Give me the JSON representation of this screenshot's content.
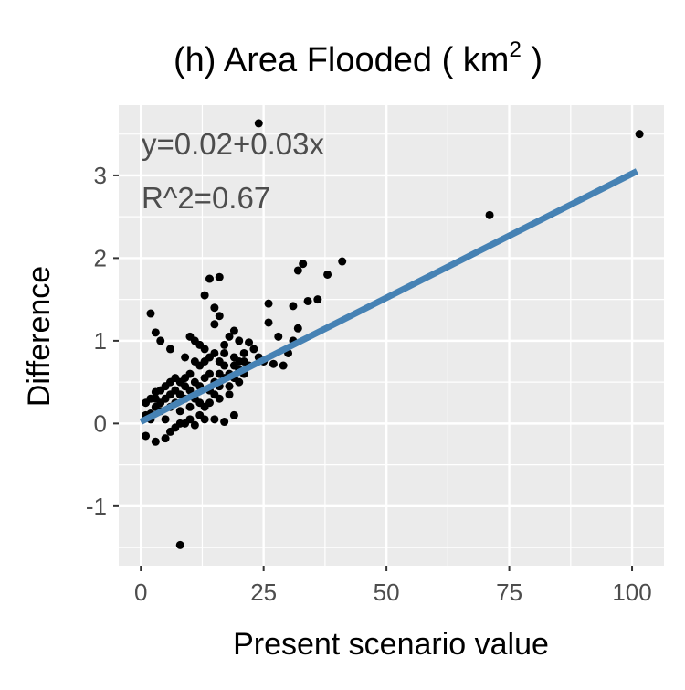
{
  "chart_data": {
    "type": "scatter",
    "title": "(h) Area Flooded ( km",
    "title_superscript": "2",
    "title_suffix": " )",
    "xlabel": "Present scenario value",
    "ylabel": "Difference",
    "xlim": [
      -4.5,
      106.5
    ],
    "ylim": [
      -1.72,
      3.85
    ],
    "x_ticks": [
      0,
      25,
      50,
      75,
      100
    ],
    "x_tick_labels": [
      "0",
      "25",
      "50",
      "75",
      "100"
    ],
    "y_ticks": [
      -1,
      0,
      1,
      2,
      3
    ],
    "y_tick_labels": [
      "-1",
      "0",
      "1",
      "2",
      "3"
    ],
    "grid": true,
    "panel_background": "#ebebeb",
    "grid_color": "#ffffff",
    "point_color": "#000000",
    "annotations": [
      "y=0.02+0.03x",
      "R^2=0.67"
    ],
    "fit_line": {
      "intercept": 0.02,
      "slope": 0.03,
      "x_range": [
        0,
        101
      ],
      "color": "#4682b4"
    },
    "series": [
      {
        "points": [
          [
            101.5,
            3.5
          ],
          [
            71,
            2.52
          ],
          [
            24,
            3.63
          ],
          [
            41,
            1.96
          ],
          [
            38,
            1.8
          ],
          [
            33,
            1.93
          ],
          [
            32,
            1.85
          ],
          [
            36,
            1.5
          ],
          [
            34,
            1.48
          ],
          [
            31,
            1.42
          ],
          [
            26,
            1.45
          ],
          [
            26,
            1.22
          ],
          [
            28,
            1.05
          ],
          [
            30,
            0.85
          ],
          [
            29,
            0.7
          ],
          [
            27,
            0.72
          ],
          [
            32,
            1.15
          ],
          [
            31,
            1.0
          ],
          [
            14,
            1.75
          ],
          [
            16,
            1.77
          ],
          [
            13,
            1.55
          ],
          [
            15,
            1.4
          ],
          [
            16,
            1.3
          ],
          [
            15,
            1.2
          ],
          [
            11,
            1.0
          ],
          [
            10,
            1.05
          ],
          [
            12,
            0.95
          ],
          [
            19,
            1.12
          ],
          [
            18,
            1.05
          ],
          [
            17,
            0.95
          ],
          [
            2,
            1.33
          ],
          [
            3,
            1.1
          ],
          [
            4,
            1.0
          ],
          [
            6,
            0.9
          ],
          [
            9,
            0.8
          ],
          [
            20,
            1.0
          ],
          [
            22,
            0.98
          ],
          [
            21,
            0.85
          ],
          [
            23,
            0.9
          ],
          [
            24,
            0.8
          ],
          [
            25,
            0.75
          ],
          [
            20,
            0.75
          ],
          [
            8,
            -1.47
          ],
          [
            1,
            -0.15
          ],
          [
            3,
            -0.22
          ],
          [
            5,
            -0.18
          ],
          [
            6,
            -0.1
          ],
          [
            7,
            -0.05
          ],
          [
            9,
            0.0
          ],
          [
            11,
            -0.02
          ],
          [
            13,
            0.05
          ],
          [
            15,
            0.05
          ],
          [
            17,
            0.02
          ],
          [
            19,
            0.1
          ],
          [
            13,
            0.2
          ],
          [
            2,
            0.05
          ],
          [
            2,
            0.12
          ],
          [
            3,
            0.2
          ],
          [
            3,
            0.3
          ],
          [
            4,
            0.25
          ],
          [
            4,
            0.15
          ],
          [
            5,
            0.3
          ],
          [
            5,
            0.05
          ],
          [
            6,
            0.35
          ],
          [
            6,
            0.2
          ],
          [
            7,
            0.25
          ],
          [
            7,
            0.4
          ],
          [
            8,
            0.35
          ],
          [
            8,
            0.15
          ],
          [
            9,
            0.3
          ],
          [
            9,
            0.45
          ],
          [
            10,
            0.4
          ],
          [
            10,
            0.2
          ],
          [
            11,
            0.5
          ],
          [
            11,
            0.3
          ],
          [
            12,
            0.45
          ],
          [
            12,
            0.25
          ],
          [
            13,
            0.55
          ],
          [
            14,
            0.4
          ],
          [
            14,
            0.6
          ],
          [
            15,
            0.5
          ],
          [
            15,
            0.35
          ],
          [
            16,
            0.6
          ],
          [
            16,
            0.45
          ],
          [
            17,
            0.55
          ],
          [
            17,
            0.7
          ],
          [
            18,
            0.6
          ],
          [
            18,
            0.45
          ],
          [
            19,
            0.7
          ],
          [
            19,
            0.55
          ],
          [
            20,
            0.65
          ],
          [
            21,
            0.6
          ],
          [
            22,
            0.7
          ],
          [
            10,
            0.6
          ],
          [
            9,
            0.55
          ],
          [
            8,
            0.5
          ],
          [
            12,
            0.7
          ],
          [
            13,
            0.75
          ],
          [
            14,
            0.8
          ],
          [
            11,
            0.75
          ],
          [
            7,
            0.55
          ],
          [
            6,
            0.5
          ],
          [
            5,
            0.45
          ],
          [
            4,
            0.4
          ],
          [
            3,
            0.38
          ],
          [
            1,
            0.1
          ],
          [
            1,
            0.25
          ],
          [
            2,
            0.3
          ],
          [
            14,
            0.25
          ],
          [
            16,
            0.3
          ],
          [
            18,
            0.35
          ],
          [
            20,
            0.5
          ],
          [
            12,
            0.1
          ],
          [
            10,
            0.05
          ],
          [
            8,
            0.0
          ],
          [
            15,
            0.85
          ],
          [
            17,
            0.85
          ],
          [
            13,
            0.9
          ],
          [
            16,
            0.75
          ],
          [
            19,
            0.8
          ],
          [
            21,
            0.75
          ]
        ]
      }
    ]
  }
}
